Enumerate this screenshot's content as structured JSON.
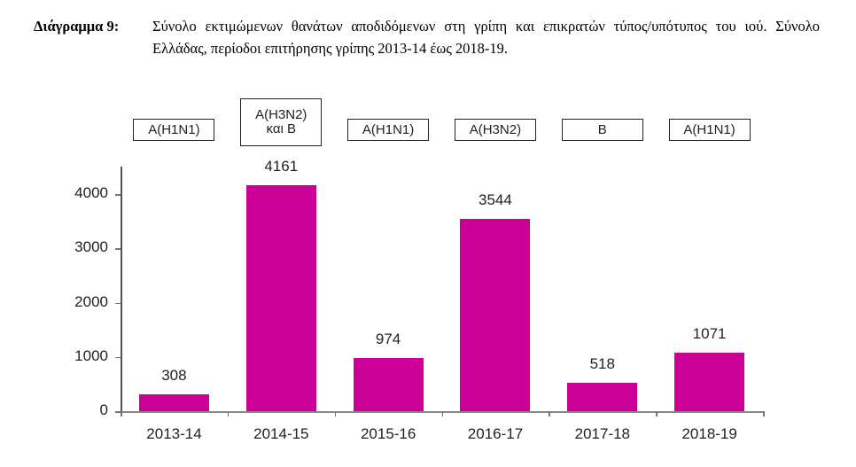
{
  "caption": {
    "label": "Διάγραμμα 9:",
    "text": "Σύνολο εκτιμώμενων θανάτων αποδιδόμενων στη γρίπη και επικρατών τύπος/υπότυπος του ιού. Σύνολο Ελλάδας, περίοδοι επιτήρησης γρίπης 2013-14 έως 2018-19."
  },
  "colors": {
    "bar": "#CC0099",
    "axis": "#555555",
    "text": "#222222"
  },
  "y_ticks": [
    "0",
    "1000",
    "2000",
    "3000",
    "4000"
  ],
  "categories": [
    "2013-14",
    "2014-15",
    "2015-16",
    "2016-17",
    "2017-18",
    "2018-19"
  ],
  "value_labels": [
    "308",
    "4161",
    "974",
    "3544",
    "518",
    "1071"
  ],
  "type_boxes": [
    {
      "line1": "A(H1N1)",
      "line2": ""
    },
    {
      "line1": "A(H3N2)",
      "line2": "και B"
    },
    {
      "line1": "A(H1N1)",
      "line2": ""
    },
    {
      "line1": "A(H3N2)",
      "line2": ""
    },
    {
      "line1": "B",
      "line2": ""
    },
    {
      "line1": "A(H1N1)",
      "line2": ""
    }
  ],
  "chart_data": {
    "type": "bar",
    "title": "Σύνολο εκτιμώμενων θανάτων αποδιδόμενων στη γρίπη και επικρατών τύπος/υπότυπος του ιού. Σύνολο Ελλάδας, περίοδοι επιτήρησης γρίπης 2013-14 έως 2018-19.",
    "figure_label": "Διάγραμμα 9:",
    "categories": [
      "2013-14",
      "2014-15",
      "2015-16",
      "2016-17",
      "2017-18",
      "2018-19"
    ],
    "values": [
      308,
      4161,
      974,
      3544,
      518,
      1071
    ],
    "annotations": [
      "A(H1N1)",
      "A(H3N2) και B",
      "A(H1N1)",
      "A(H3N2)",
      "B",
      "A(H1N1)"
    ],
    "xlabel": "",
    "ylabel": "",
    "ylim": [
      0,
      4500
    ],
    "yticks": [
      0,
      1000,
      2000,
      3000,
      4000
    ],
    "grid": false,
    "legend": null,
    "data_labels": true,
    "bar_color": "#CC0099"
  }
}
